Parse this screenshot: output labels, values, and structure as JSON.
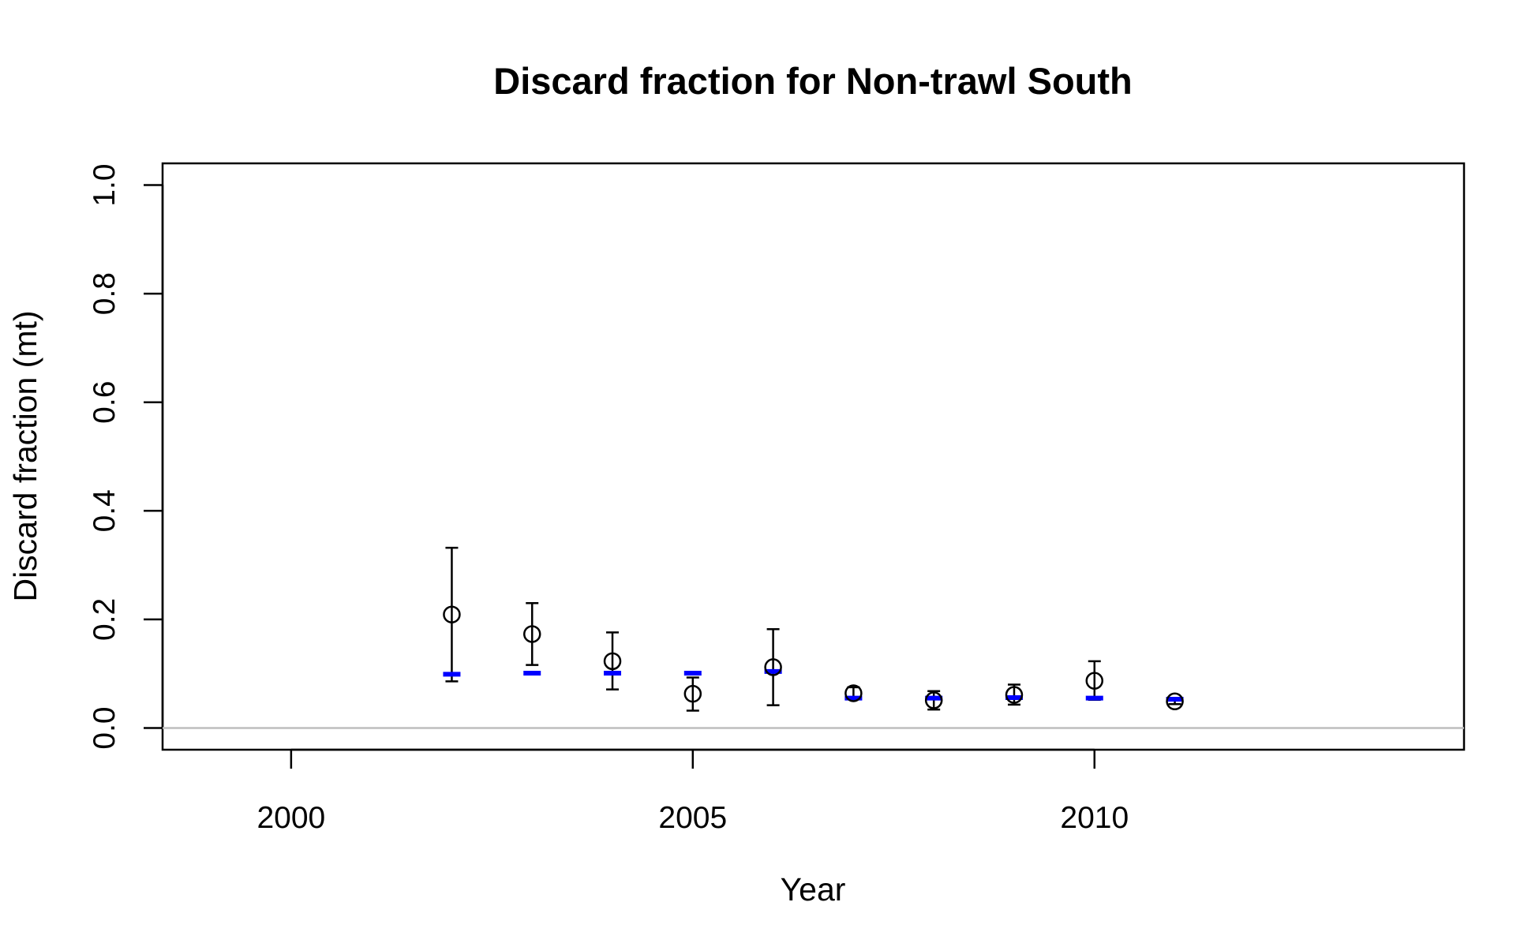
{
  "chart_data": {
    "type": "scatter",
    "title": "Discard fraction for Non-trawl South",
    "xlabel": "Year",
    "ylabel": "Discard fraction (mt)",
    "xlim": [
      1998.4,
      2014.6
    ],
    "ylim": [
      -0.04,
      1.04
    ],
    "xticks": [
      2000,
      2005,
      2010
    ],
    "yticks": [
      0.0,
      0.2,
      0.4,
      0.6,
      0.8,
      1.0
    ],
    "xtick_labels": [
      "2000",
      "2005",
      "2010"
    ],
    "ytick_labels": [
      "0.0",
      "0.2",
      "0.4",
      "0.6",
      "0.8",
      "1.0"
    ],
    "reference_line_y": 0.0,
    "grid": false,
    "legend": "none",
    "colors": {
      "observed": "#000000",
      "expected": "#0000ff",
      "reference": "#bebebe"
    },
    "observed": [
      {
        "x": 2002,
        "y": 0.209,
        "lower": 0.086,
        "upper": 0.332
      },
      {
        "x": 2003,
        "y": 0.173,
        "lower": 0.116,
        "upper": 0.23
      },
      {
        "x": 2004,
        "y": 0.123,
        "lower": 0.071,
        "upper": 0.176
      },
      {
        "x": 2005,
        "y": 0.063,
        "lower": 0.032,
        "upper": 0.093
      },
      {
        "x": 2006,
        "y": 0.112,
        "lower": 0.042,
        "upper": 0.182
      },
      {
        "x": 2007,
        "y": 0.064,
        "lower": 0.053,
        "upper": 0.075
      },
      {
        "x": 2008,
        "y": 0.051,
        "lower": 0.034,
        "upper": 0.068
      },
      {
        "x": 2009,
        "y": 0.061,
        "lower": 0.043,
        "upper": 0.08
      },
      {
        "x": 2010,
        "y": 0.087,
        "lower": 0.052,
        "upper": 0.123
      },
      {
        "x": 2011,
        "y": 0.049,
        "lower": 0.044,
        "upper": 0.054
      }
    ],
    "expected": [
      {
        "x": 2002,
        "y": 0.099
      },
      {
        "x": 2003,
        "y": 0.101
      },
      {
        "x": 2004,
        "y": 0.101
      },
      {
        "x": 2005,
        "y": 0.101
      },
      {
        "x": 2006,
        "y": 0.104
      },
      {
        "x": 2007,
        "y": 0.055
      },
      {
        "x": 2008,
        "y": 0.055
      },
      {
        "x": 2009,
        "y": 0.056
      },
      {
        "x": 2010,
        "y": 0.055
      },
      {
        "x": 2011,
        "y": 0.053
      }
    ]
  }
}
